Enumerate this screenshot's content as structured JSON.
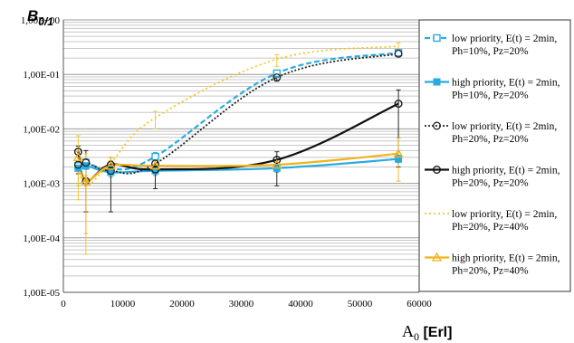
{
  "chart_data": {
    "type": "line",
    "ylabel_main": "B",
    "ylabel_sub": "0/1",
    "xlabel_main": "A",
    "xlabel_sub": "0",
    "xlabel_unit": " [Erl]",
    "y_scale": "log",
    "xlim": [
      0,
      60000
    ],
    "ylim": [
      1e-05,
      1
    ],
    "x_ticks": [
      0,
      10000,
      20000,
      30000,
      40000,
      50000,
      60000
    ],
    "x_tick_labels": [
      "0",
      "10000",
      "20000",
      "30000",
      "40000",
      "50000",
      "60000"
    ],
    "y_ticks": [
      1,
      0.1,
      0.01,
      0.001,
      0.0001,
      1e-05
    ],
    "y_tick_labels": [
      "1,00E+00",
      "1,00E-01",
      "1,00E-02",
      "1,00E-03",
      "1,00E-04",
      "1,00E-05"
    ],
    "grid": "horizontal, minor log gridlines",
    "legend_position": "right",
    "series": [
      {
        "legend_lines": [
          "low priority, E(t) = 2min,",
          "Ph=10%, Pz=20%"
        ],
        "color": "#29abe2",
        "dash": "6,3",
        "marker": "square-open",
        "width": 2.2,
        "x": [
          2500,
          3800,
          8000,
          15500,
          36000,
          56500
        ],
        "y": [
          0.0021,
          0.0024,
          0.0018,
          0.0031,
          0.105,
          0.25
        ],
        "err_low": [
          0.0018,
          0.0021,
          0.0016,
          0.0026,
          0.09,
          0.22
        ],
        "err_high": [
          0.0025,
          0.0028,
          0.0021,
          0.0037,
          0.12,
          0.28
        ]
      },
      {
        "legend_lines": [
          "high priority, E(t) = 2min,",
          "Ph=10%, Pz=20%"
        ],
        "color": "#29abe2",
        "dash": "",
        "marker": "square-filled",
        "width": 2.2,
        "x": [
          2500,
          3800,
          8000,
          15500,
          36000,
          56500
        ],
        "y": [
          0.0019,
          0.0021,
          0.0016,
          0.0017,
          0.0019,
          0.0028
        ],
        "err_low": [
          0.0015,
          0.0018,
          0.0013,
          0.0014,
          0.0016,
          0.0024
        ],
        "err_high": [
          0.0023,
          0.0025,
          0.0019,
          0.0021,
          0.0023,
          0.0033
        ]
      },
      {
        "legend_lines": [
          "low priority, E(t) = 2min,",
          "Ph=20%, Pz=20%"
        ],
        "color": "#222222",
        "dash": "2,2",
        "marker": "circle-open",
        "width": 1.8,
        "x": [
          2500,
          3800,
          8000,
          15500,
          36000,
          56500
        ],
        "y": [
          0.0022,
          0.0024,
          0.0017,
          0.0023,
          0.088,
          0.24
        ],
        "err_low": [
          0.0019,
          0.0021,
          0.0015,
          0.0019,
          0.075,
          0.21
        ],
        "err_high": [
          0.0026,
          0.0028,
          0.002,
          0.0028,
          0.1,
          0.27
        ]
      },
      {
        "legend_lines": [
          "high priority, E(t) = 2min,",
          "Ph=20%, Pz=20%"
        ],
        "color": "#111111",
        "dash": "",
        "marker": "circle-open",
        "width": 2.2,
        "x": [
          2500,
          3800,
          8000,
          15500,
          36000,
          56500
        ],
        "y": [
          0.0038,
          0.0011,
          0.0022,
          0.0018,
          0.0027,
          0.029
        ],
        "err_low": [
          0.0015,
          0.0003,
          0.0003,
          0.0008,
          0.0009,
          0.002
        ],
        "err_high": [
          0.0048,
          0.004,
          0.003,
          0.0028,
          0.0038,
          0.052
        ]
      },
      {
        "legend_lines": [
          "low priority, E(t) = 2min,",
          "Ph=20%, Pz=40%"
        ],
        "color": "#f7c325",
        "dash": "2,3",
        "marker": "none",
        "width": 1.8,
        "x": [
          2500,
          3800,
          8000,
          15500,
          36000,
          56500
        ],
        "y": [
          0.0023,
          0.0009,
          0.0024,
          0.016,
          0.19,
          0.33
        ],
        "err_low": [
          0.0005,
          5e-05,
          0.0019,
          0.01,
          0.14,
          0.28
        ],
        "err_high": [
          0.0075,
          0.0035,
          0.003,
          0.021,
          0.23,
          0.38
        ]
      },
      {
        "legend_lines": [
          "high priority, E(t) = 2min,",
          "Ph=20%, Pz=40%"
        ],
        "color": "#f2b21b",
        "dash": "",
        "marker": "triangle-open",
        "width": 2.2,
        "x": [
          2500,
          3800,
          8000,
          15500,
          36000,
          56500
        ],
        "y": [
          0.003,
          0.0011,
          0.0021,
          0.0021,
          0.0022,
          0.0035
        ],
        "err_low": [
          0.0009,
          0.00012,
          0.0017,
          0.0017,
          0.0018,
          0.0011
        ],
        "err_high": [
          0.0038,
          0.0014,
          0.0026,
          0.0026,
          0.0027,
          0.0068
        ]
      }
    ]
  }
}
